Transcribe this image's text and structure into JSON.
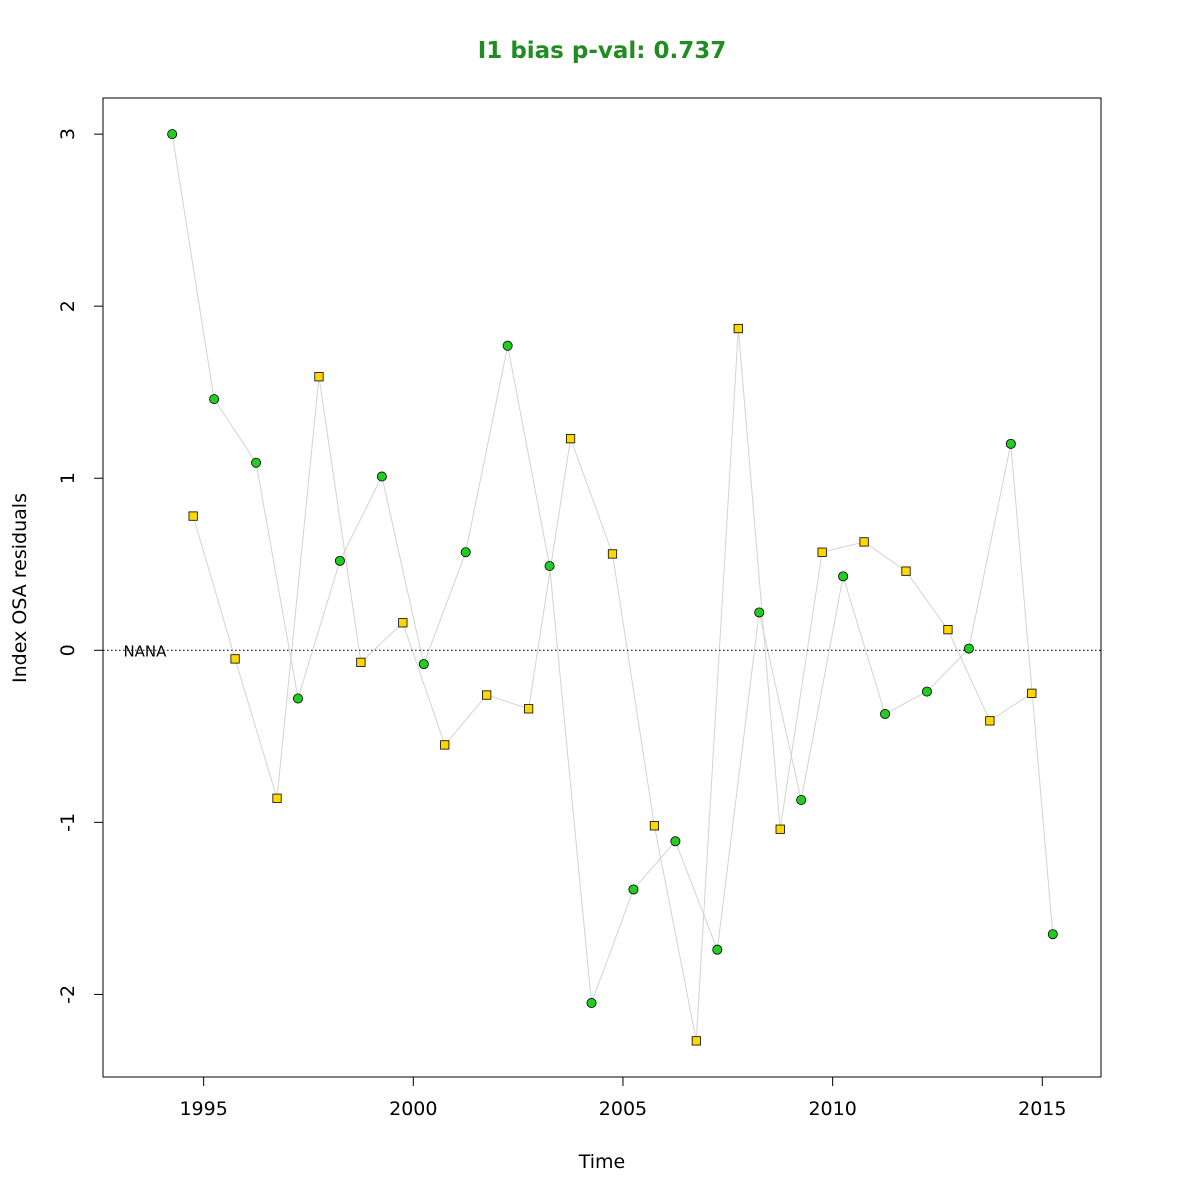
{
  "chart_data": {
    "type": "scatter",
    "title": "I1 bias p-val: 0.737",
    "title_color": "#228B22",
    "xlabel": "Time",
    "ylabel": "Index OSA residuals",
    "xlim": [
      1992.6,
      2016.4
    ],
    "ylim": [
      -2.48,
      3.21
    ],
    "x_ticks": [
      1995,
      2000,
      2005,
      2010,
      2015
    ],
    "y_ticks": [
      -2,
      -1,
      0,
      1,
      2,
      3
    ],
    "reference_line": {
      "y": 0,
      "style": "dotted",
      "label": "NANA",
      "label_x": 1993.6
    },
    "connector_color": "#d3d3d3",
    "series": [
      {
        "marker": "circle",
        "color": "#22cc22",
        "points": [
          [
            1994.25,
            3.0
          ],
          [
            1995.25,
            1.46
          ],
          [
            1996.25,
            1.09
          ],
          [
            1997.25,
            -0.28
          ],
          [
            1998.25,
            0.52
          ],
          [
            1999.25,
            1.01
          ],
          [
            2000.25,
            -0.08
          ],
          [
            2001.25,
            0.57
          ],
          [
            2002.25,
            1.77
          ],
          [
            2003.25,
            0.49
          ],
          [
            2004.25,
            -2.05
          ],
          [
            2005.25,
            -1.39
          ],
          [
            2006.25,
            -1.11
          ],
          [
            2007.25,
            -1.74
          ],
          [
            2008.25,
            0.22
          ],
          [
            2009.25,
            -0.87
          ],
          [
            2010.25,
            0.43
          ],
          [
            2011.25,
            -0.37
          ],
          [
            2012.25,
            -0.24
          ],
          [
            2013.25,
            0.01
          ],
          [
            2014.25,
            1.2
          ],
          [
            2015.25,
            -1.65
          ]
        ]
      },
      {
        "marker": "square",
        "color": "#ffd700",
        "points": [
          [
            1994.75,
            0.78
          ],
          [
            1995.75,
            -0.05
          ],
          [
            1996.75,
            -0.86
          ],
          [
            1997.75,
            1.59
          ],
          [
            1998.75,
            -0.07
          ],
          [
            1999.75,
            0.16
          ],
          [
            2000.75,
            -0.55
          ],
          [
            2001.75,
            -0.26
          ],
          [
            2002.75,
            -0.34
          ],
          [
            2003.75,
            1.23
          ],
          [
            2004.75,
            0.56
          ],
          [
            2005.75,
            -1.02
          ],
          [
            2006.75,
            -2.27
          ],
          [
            2007.75,
            1.87
          ],
          [
            2008.75,
            -1.04
          ],
          [
            2009.75,
            0.57
          ],
          [
            2010.75,
            0.63
          ],
          [
            2011.75,
            0.46
          ],
          [
            2012.75,
            0.12
          ],
          [
            2013.75,
            -0.41
          ],
          [
            2014.75,
            -0.25
          ]
        ]
      }
    ]
  }
}
